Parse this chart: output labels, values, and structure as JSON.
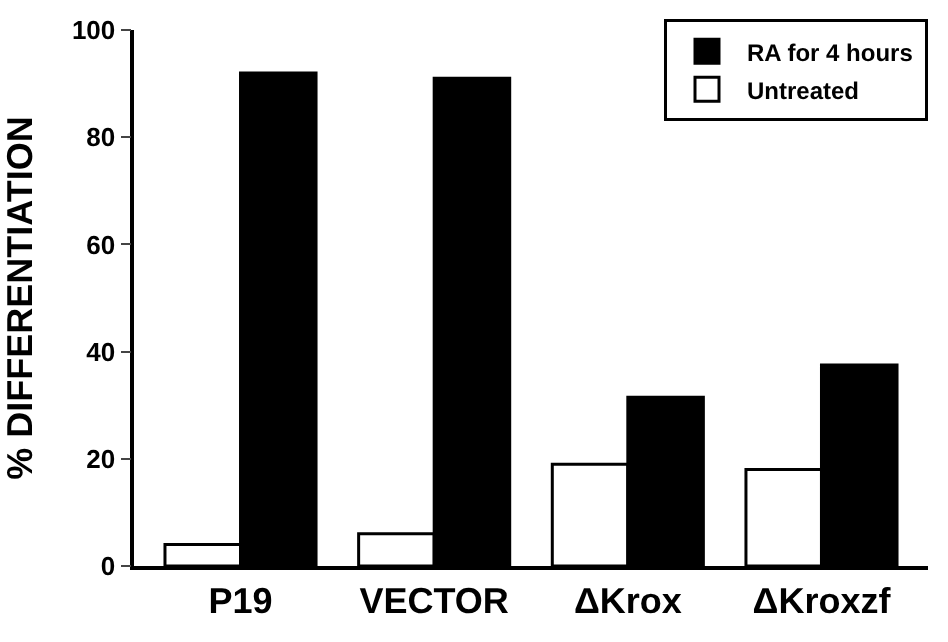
{
  "chart_data": {
    "type": "bar",
    "ylabel": "% DIFFERENTIATION",
    "categories": [
      "P19",
      "VECTOR",
      "ΔKrox",
      "ΔKroxzf"
    ],
    "series": [
      {
        "name": "Untreated",
        "color": "#ffffff",
        "values": [
          4,
          6,
          19,
          18
        ]
      },
      {
        "name": "RA for 4 hours",
        "color": "#000000",
        "values": [
          92,
          91,
          31.5,
          37.5
        ]
      }
    ],
    "ylim": [
      0,
      100
    ],
    "yticks": [
      0,
      20,
      40,
      60,
      80,
      100
    ],
    "legend": "top right"
  }
}
